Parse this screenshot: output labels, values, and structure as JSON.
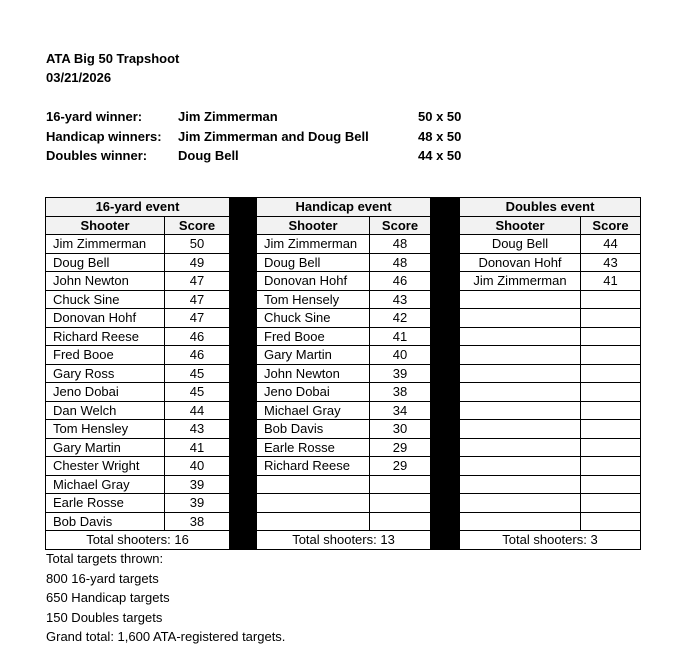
{
  "header": {
    "title": "ATA Big 50  Trapshoot",
    "date": "03/21/2026"
  },
  "winners": [
    {
      "label": "16-yard winner:",
      "name": "Jim Zimmerman",
      "score": "50 x 50"
    },
    {
      "label": "Handicap winners:",
      "name": "Jim Zimmerman and Doug Bell",
      "score": "48 x 50"
    },
    {
      "label": "Doubles winner:",
      "name": "Doug Bell",
      "score": "44 x 50"
    }
  ],
  "columns": {
    "shooter": "Shooter",
    "score": "Score"
  },
  "events": [
    {
      "title": "16-yard event",
      "total": "Total shooters: 16",
      "centered": false,
      "rows": [
        [
          "Jim Zimmerman",
          "50"
        ],
        [
          "Doug Bell",
          "49"
        ],
        [
          "John Newton",
          "47"
        ],
        [
          "Chuck Sine",
          "47"
        ],
        [
          "Donovan Hohf",
          "47"
        ],
        [
          "Richard Reese",
          "46"
        ],
        [
          "Fred Booe",
          "46"
        ],
        [
          "Gary Ross",
          "45"
        ],
        [
          "Jeno Dobai",
          "45"
        ],
        [
          "Dan Welch",
          "44"
        ],
        [
          "Tom Hensley",
          "43"
        ],
        [
          "Gary Martin",
          "41"
        ],
        [
          "Chester Wright",
          "40"
        ],
        [
          "Michael Gray",
          "39"
        ],
        [
          "Earle Rosse",
          "39"
        ],
        [
          "Bob Davis",
          "38"
        ]
      ]
    },
    {
      "title": "Handicap event",
      "total": "Total shooters: 13",
      "centered": false,
      "rows": [
        [
          "Jim Zimmerman",
          "48"
        ],
        [
          "Doug Bell",
          "48"
        ],
        [
          "Donovan Hohf",
          "46"
        ],
        [
          "Tom Hensely",
          "43"
        ],
        [
          "Chuck Sine",
          "42"
        ],
        [
          "Fred Booe",
          "41"
        ],
        [
          "Gary Martin",
          "40"
        ],
        [
          "John Newton",
          "39"
        ],
        [
          "Jeno Dobai",
          "38"
        ],
        [
          "Michael Gray",
          "34"
        ],
        [
          "Bob Davis",
          "30"
        ],
        [
          "Earle Rosse",
          "29"
        ],
        [
          "Richard Reese",
          "29"
        ]
      ]
    },
    {
      "title": "Doubles event",
      "total": "Total shooters: 3",
      "centered": true,
      "rows": [
        [
          "Doug Bell",
          "44"
        ],
        [
          "Donovan Hohf",
          "43"
        ],
        [
          "Jim Zimmerman",
          "41"
        ]
      ]
    }
  ],
  "footer": [
    "Total targets thrown:",
    "800  16-yard targets",
    "650  Handicap targets",
    "150  Doubles targets",
    "Grand total: 1,600 ATA-registered targets."
  ]
}
